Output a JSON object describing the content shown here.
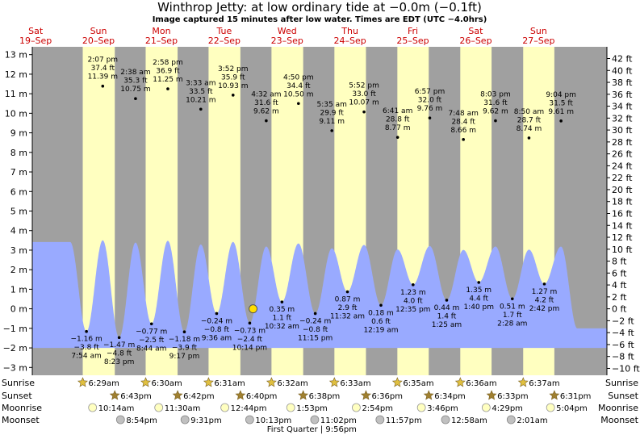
{
  "chart_data": {
    "type": "area",
    "title": "Winthrop Jetty: at low  ordinary tide at −0.0m (−0.1ft)",
    "subtitle": "Image captured 15 minutes after low water. Times are EDT (UTC −4.0hrs)",
    "xlabel": "",
    "ylabel": "",
    "ylim": [
      -3.4,
      13.4
    ],
    "y_left_ticks": [
      -3,
      -2,
      -1,
      0,
      1,
      2,
      3,
      4,
      5,
      6,
      7,
      8,
      9,
      10,
      11,
      12,
      13
    ],
    "y_left_unit": "m",
    "y_right_ticks": [
      -10,
      -8,
      -6,
      -4,
      -2,
      0,
      2,
      4,
      6,
      8,
      10,
      12,
      14,
      16,
      18,
      20,
      22,
      24,
      26,
      28,
      30,
      32,
      34,
      36,
      38,
      40,
      42
    ],
    "y_right_unit": "ft",
    "grid": false,
    "day_labels": [
      {
        "dow": "Sat",
        "date": "19–Sep"
      },
      {
        "dow": "Sun",
        "date": "20–Sep"
      },
      {
        "dow": "Mon",
        "date": "21–Sep"
      },
      {
        "dow": "Tue",
        "date": "22–Sep"
      },
      {
        "dow": "Wed",
        "date": "23–Sep"
      },
      {
        "dow": "Thu",
        "date": "24–Sep"
      },
      {
        "dow": "Fri",
        "date": "25–Sep"
      },
      {
        "dow": "Sat",
        "date": "26–Sep"
      },
      {
        "dow": "Sun",
        "date": "27–Sep"
      }
    ],
    "high_tides": [
      {
        "time": "2:07 pm",
        "ft": "37.4 ft",
        "m": "11.39 m",
        "value": 11.39
      },
      {
        "time": "2:38 am",
        "ft": "35.3 ft",
        "m": "10.75 m",
        "value": 10.75
      },
      {
        "time": "2:58 pm",
        "ft": "36.9 ft",
        "m": "11.25 m",
        "value": 11.25
      },
      {
        "time": "3:33 am",
        "ft": "33.5 ft",
        "m": "10.21 m",
        "value": 10.21
      },
      {
        "time": "3:52 pm",
        "ft": "35.9 ft",
        "m": "10.93 m",
        "value": 10.93
      },
      {
        "time": "4:32 am",
        "ft": "31.6 ft",
        "m": "9.62 m",
        "value": 9.62
      },
      {
        "time": "4:50 pm",
        "ft": "34.4 ft",
        "m": "10.50 m",
        "value": 10.5
      },
      {
        "time": "5:35 am",
        "ft": "29.9 ft",
        "m": "9.11 m",
        "value": 9.11
      },
      {
        "time": "5:52 pm",
        "ft": "33.0 ft",
        "m": "10.07 m",
        "value": 10.07
      },
      {
        "time": "6:41 am",
        "ft": "28.8 ft",
        "m": "8.77 m",
        "value": 8.77
      },
      {
        "time": "6:57 pm",
        "ft": "32.0 ft",
        "m": "9.76 m",
        "value": 9.76
      },
      {
        "time": "7:48 am",
        "ft": "28.4 ft",
        "m": "8.66 m",
        "value": 8.66
      },
      {
        "time": "8:03 pm",
        "ft": "31.6 ft",
        "m": "9.62 m",
        "value": 9.62
      },
      {
        "time": "8:50 am",
        "ft": "28.7 ft",
        "m": "8.74 m",
        "value": 8.74
      },
      {
        "time": "9:04 pm",
        "ft": "31.5 ft",
        "m": "9.61 m",
        "value": 9.61
      }
    ],
    "low_tides": [
      {
        "time": "7:54 am",
        "ft": "−3.8 ft",
        "m": "−1.16 m",
        "value": -1.16
      },
      {
        "time": "8:23 pm",
        "ft": "−4.8 ft",
        "m": "−1.47 m",
        "value": -1.47
      },
      {
        "time": "8:44 am",
        "ft": "−2.5 ft",
        "m": "−0.77 m",
        "value": -0.77
      },
      {
        "time": "9:17 pm",
        "ft": "−3.9 ft",
        "m": "−1.18 m",
        "value": -1.18
      },
      {
        "time": "9:36 am",
        "ft": "−0.8 ft",
        "m": "−0.24 m",
        "value": -0.24
      },
      {
        "time": "10:14 pm",
        "ft": "−2.4 ft",
        "m": "−0.73 m",
        "value": -0.73
      },
      {
        "time": "10:32 am",
        "ft": "1.1 ft",
        "m": "0.35 m",
        "value": 0.35
      },
      {
        "time": "11:15 pm",
        "ft": "−0.8 ft",
        "m": "−0.24 m",
        "value": -0.24
      },
      {
        "time": "11:32 am",
        "ft": "2.9 ft",
        "m": "0.87 m",
        "value": 0.87
      },
      {
        "time": "12:19 am",
        "ft": "0.6 ft",
        "m": "0.18 m",
        "value": 0.18
      },
      {
        "time": "12:35 pm",
        "ft": "4.0 ft",
        "m": "1.23 m",
        "value": 1.23
      },
      {
        "time": "1:25 am",
        "ft": "1.4 ft",
        "m": "0.44 m",
        "value": 0.44
      },
      {
        "time": "1:40 pm",
        "ft": "4.4 ft",
        "m": "1.35 m",
        "value": 1.35
      },
      {
        "time": "2:28 am",
        "ft": "1.7 ft",
        "m": "0.51 m",
        "value": 0.51
      },
      {
        "time": "2:42 pm",
        "ft": "4.2 ft",
        "m": "1.27 m",
        "value": 1.27
      }
    ],
    "current": {
      "value": -0.0
    },
    "row_labels": {
      "sunrise": "Sunrise",
      "sunset": "Sunset",
      "moonrise": "Moonrise",
      "moonset": "Moonset"
    },
    "sunrise": [
      "6:29am",
      "6:30am",
      "6:31am",
      "6:32am",
      "6:33am",
      "6:35am",
      "6:36am",
      "6:37am"
    ],
    "sunset": [
      "6:43pm",
      "6:42pm",
      "6:40pm",
      "6:38pm",
      "6:36pm",
      "6:34pm",
      "6:33pm",
      "6:31pm"
    ],
    "moonrise": [
      "10:14am",
      "11:30am",
      "12:44pm",
      "1:53pm",
      "2:54pm",
      "3:46pm",
      "4:29pm",
      "5:04pm"
    ],
    "moonset": [
      "8:54pm",
      "9:31pm",
      "10:13pm",
      "11:02pm",
      "11:57pm",
      "12:58am",
      "2:01am"
    ],
    "moon_phase": "First Quarter | 9:56pm",
    "colors": {
      "night": "#a0a0a0",
      "day": "#ffffc0",
      "water": "#99aaff",
      "day_text": "#cc0000",
      "sun_star": "#e0c040",
      "sunset_star": "#a08030",
      "moon_rise": "#ffffc0",
      "moon_set": "#c0c0c0",
      "marker": "#ffdd00"
    }
  }
}
